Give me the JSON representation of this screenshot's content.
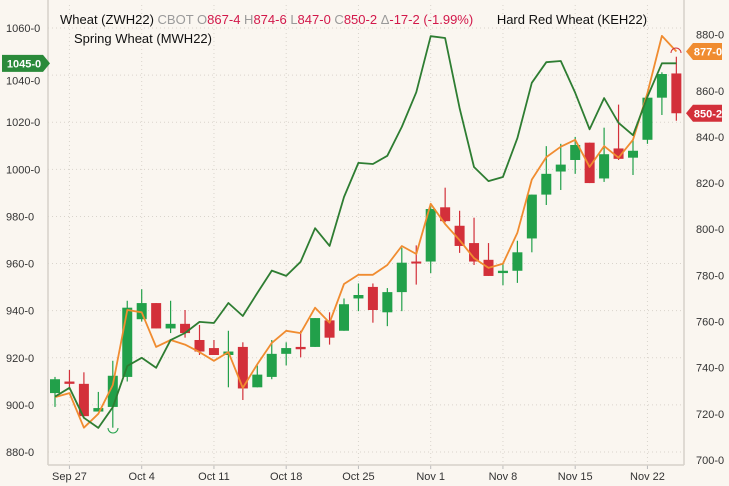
{
  "legend": {
    "name": "Wheat (ZWH22)",
    "exchange": "CBOT",
    "o_label": "O",
    "o_value": "867-4",
    "h_label": "H",
    "h_value": "874-6",
    "l_label": "L",
    "l_value": "847-0",
    "c_label": "C",
    "c_value": "850-2",
    "delta_label": "Δ",
    "delta_value": "-17-2 (-1.99%)",
    "series2": "Hard Red Wheat (KEH22)",
    "series3": "Spring Wheat (MWH22)"
  },
  "colors": {
    "background": "#faf6f0",
    "up": "#22a04a",
    "down": "#d3303a",
    "hard_red_wheat": "#f08c30",
    "spring_wheat": "#2e7d32",
    "legend_values": "#d2184a"
  },
  "chart_data": {
    "type": "candlestick",
    "title": "",
    "grid": true,
    "legend_placement": "top-left",
    "x_ticks": [
      "Sep 27",
      "Oct 4",
      "Oct 11",
      "Oct 18",
      "Oct 25",
      "Nov 1",
      "Nov 8",
      "Nov 15",
      "Nov 22"
    ],
    "dates": [
      "Sep 24",
      "Sep 27",
      "Sep 28",
      "Sep 29",
      "Sep 30",
      "Oct 1",
      "Oct 4",
      "Oct 5",
      "Oct 6",
      "Oct 7",
      "Oct 8",
      "Oct 11",
      "Oct 12",
      "Oct 13",
      "Oct 14",
      "Oct 15",
      "Oct 18",
      "Oct 19",
      "Oct 20",
      "Oct 21",
      "Oct 22",
      "Oct 25",
      "Oct 26",
      "Oct 27",
      "Oct 28",
      "Oct 29",
      "Nov 1",
      "Nov 2",
      "Nov 3",
      "Nov 4",
      "Nov 5",
      "Nov 8",
      "Nov 9",
      "Nov 10",
      "Nov 11",
      "Nov 12",
      "Nov 15",
      "Nov 16",
      "Nov 17",
      "Nov 18",
      "Nov 19",
      "Nov 22",
      "Nov 23",
      "Nov 24"
    ],
    "left_axis": {
      "ylim": [
        880,
        1060
      ],
      "ticks": [
        "1060-0",
        "1040-0",
        "1020-0",
        "1000-0",
        "980-0",
        "960-0",
        "940-0",
        "920-0",
        "900-0",
        "880-0"
      ]
    },
    "right_axis": {
      "ylim": [
        700,
        880
      ],
      "ticks": [
        "880-0",
        "860-0",
        "840-0",
        "820-0",
        "800-0",
        "780-0",
        "760-0",
        "740-0",
        "720-0",
        "700-0"
      ]
    },
    "series": [
      {
        "name": "Wheat (ZWH22)",
        "kind": "ohlc",
        "axis": "right",
        "ohlc": [
          [
            729,
            736,
            723,
            735
          ],
          [
            734,
            739,
            731,
            733
          ],
          [
            733,
            738,
            719,
            719
          ],
          [
            721,
            729.5,
            721,
            722.5
          ],
          [
            723,
            743,
            714,
            736.5
          ],
          [
            736,
            769,
            734,
            766
          ],
          [
            761,
            774,
            760,
            768
          ],
          [
            768,
            768,
            757,
            757
          ],
          [
            757,
            769,
            755,
            759
          ],
          [
            759,
            765,
            753,
            755
          ],
          [
            752,
            758.5,
            745.5,
            747
          ],
          [
            748.5,
            752,
            745.5,
            745.5
          ],
          [
            745.5,
            756,
            731.5,
            747
          ],
          [
            749,
            751,
            726,
            731
          ],
          [
            731.5,
            741,
            731.5,
            737
          ],
          [
            736,
            752,
            735,
            746
          ],
          [
            746,
            751,
            741,
            748.5
          ],
          [
            749,
            756,
            744.5,
            748
          ],
          [
            749,
            761.5,
            749,
            761.5
          ],
          [
            760.5,
            764,
            750,
            753
          ],
          [
            756,
            770,
            756,
            767.5
          ],
          [
            770,
            776.5,
            764.5,
            771.5
          ],
          [
            775,
            776.5,
            759.5,
            765
          ],
          [
            764,
            774.5,
            758,
            772.75
          ],
          [
            772.75,
            792,
            764.5,
            785.5
          ],
          [
            786,
            793,
            776,
            785.5
          ],
          [
            786,
            811,
            781,
            808.75
          ],
          [
            809.5,
            818,
            803,
            803.5
          ],
          [
            801.5,
            808,
            789.75,
            792.75
          ],
          [
            794,
            805,
            784.5,
            786
          ],
          [
            786.75,
            794,
            779.75,
            779.75
          ],
          [
            781,
            785,
            775.75,
            782
          ],
          [
            782,
            795,
            776.75,
            790
          ],
          [
            796,
            815,
            790,
            815
          ],
          [
            815,
            836,
            810.5,
            824
          ],
          [
            825,
            837,
            817,
            828
          ],
          [
            830,
            840,
            824,
            836.5
          ],
          [
            837.5,
            837.5,
            820,
            820
          ],
          [
            822,
            844,
            820.5,
            832.5
          ],
          [
            835,
            854,
            830,
            830.5
          ],
          [
            831,
            838.75,
            823.5,
            834
          ],
          [
            838.75,
            857,
            837,
            857
          ],
          [
            857,
            868,
            849.5,
            867.25
          ],
          [
            867.5,
            874.75,
            847,
            850.25
          ]
        ],
        "last_label": "850-2"
      },
      {
        "name": "Hard Red Wheat (KEH22)",
        "kind": "line",
        "axis": "right",
        "values": [
          727.25,
          729,
          714,
          720,
          732.5,
          765,
          764,
          749,
          752,
          750,
          746.75,
          743,
          746.75,
          731.25,
          741.5,
          750.75,
          756,
          755,
          766,
          759.5,
          776.25,
          780.25,
          780.25,
          784.5,
          792.75,
          789.25,
          811,
          802.25,
          795.25,
          787.5,
          783.25,
          785,
          798.5,
          821.5,
          831.25,
          835.75,
          838.75,
          827,
          836,
          831,
          838.75,
          859,
          883.75,
          877
        ],
        "last_label": "877-0"
      },
      {
        "name": "Spring Wheat (MWH22)",
        "kind": "line",
        "axis": "left",
        "values": [
          903.5,
          907.25,
          894.5,
          890.25,
          899,
          916.5,
          920,
          915.75,
          927.5,
          930.5,
          935.25,
          934.75,
          943.25,
          937.75,
          947.5,
          957,
          954.75,
          960.75,
          975,
          967.5,
          988.25,
          1002.75,
          1002.25,
          1005.75,
          1018,
          1032.75,
          1056.5,
          1055.75,
          1026,
          1001,
          995,
          996.75,
          1013.25,
          1036.75,
          1045.5,
          1046,
          1032.5,
          1017,
          1030.25,
          1019.75,
          1014.5,
          1030.75,
          1045,
          1045
        ],
        "last_label": "1045-0"
      }
    ]
  }
}
